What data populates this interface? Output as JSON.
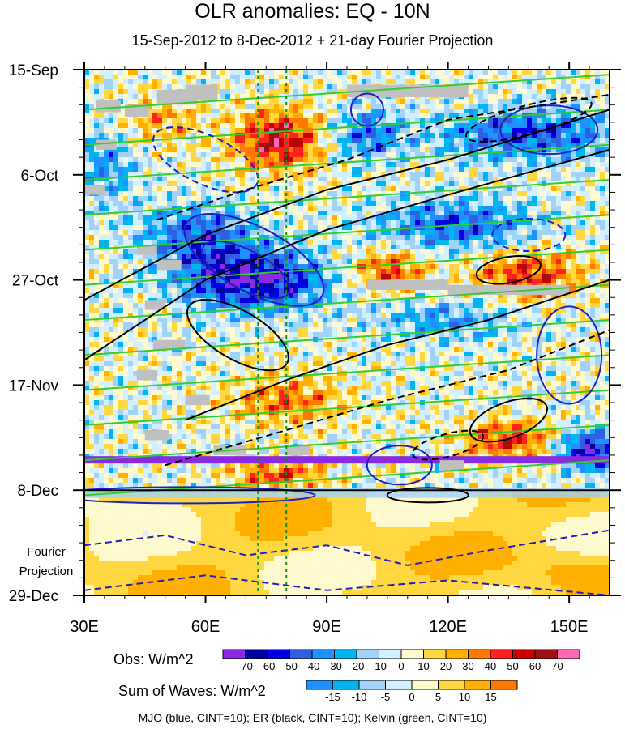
{
  "chart_data": {
    "type": "heatmap",
    "title": "OLR anomalies: EQ - 10N",
    "subtitle": "15-Sep-2012 to 8-Dec-2012 + 21-day Fourier Projection",
    "x_axis": {
      "range": [
        30,
        160
      ],
      "ticks": [
        {
          "value": 30,
          "label": "30E"
        },
        {
          "value": 60,
          "label": "60E"
        },
        {
          "value": 90,
          "label": "90E"
        },
        {
          "value": 120,
          "label": "120E"
        },
        {
          "value": 150,
          "label": "150E"
        }
      ]
    },
    "y_axis": {
      "range_days": [
        0,
        105
      ],
      "ticks": [
        {
          "day": 0,
          "label": "15-Sep"
        },
        {
          "day": 21,
          "label": "6-Oct"
        },
        {
          "day": 42,
          "label": "27-Oct"
        },
        {
          "day": 63,
          "label": "17-Nov"
        },
        {
          "day": 84,
          "label": "8-Dec"
        },
        {
          "day": 105,
          "label": "29-Dec"
        }
      ]
    },
    "projection_label_line1": "Fourier",
    "projection_label_line2": "Projection",
    "projection_start_day": 84,
    "reference_lines_lon": [
      73,
      80
    ],
    "obs_legend": {
      "label": "Obs: W/m^2",
      "levels": [
        "-70",
        "-60",
        "-50",
        "-40",
        "-30",
        "-20",
        "-10",
        "0",
        "10",
        "20",
        "30",
        "40",
        "50",
        "60",
        "70"
      ],
      "colors": [
        "#8a2be2",
        "#0000a0",
        "#0000e0",
        "#3060e0",
        "#1e90ff",
        "#00b4f0",
        "#a0d2fa",
        "#d2f0ff",
        "#fffacd",
        "#ffd740",
        "#ffb000",
        "#ff7800",
        "#ff2020",
        "#c80000",
        "#a01010",
        "#ff69b4"
      ]
    },
    "waves_legend": {
      "label": "Sum of Waves: W/m^2",
      "levels": [
        "-15",
        "-10",
        "-5",
        "0",
        "5",
        "10",
        "15"
      ],
      "colors": [
        "#1e90ff",
        "#00b4f0",
        "#a0d2fa",
        "#d2f0ff",
        "#fffacd",
        "#ffd740",
        "#ffb000",
        "#ff7800"
      ]
    },
    "contour_colors": {
      "mjo": "#1f1fbf",
      "er": "#000000",
      "kelvin": "#33cc33"
    },
    "footnote": "MJO (blue, CINT=10); ER (black, CINT=10); Kelvin (green, CINT=10)"
  }
}
